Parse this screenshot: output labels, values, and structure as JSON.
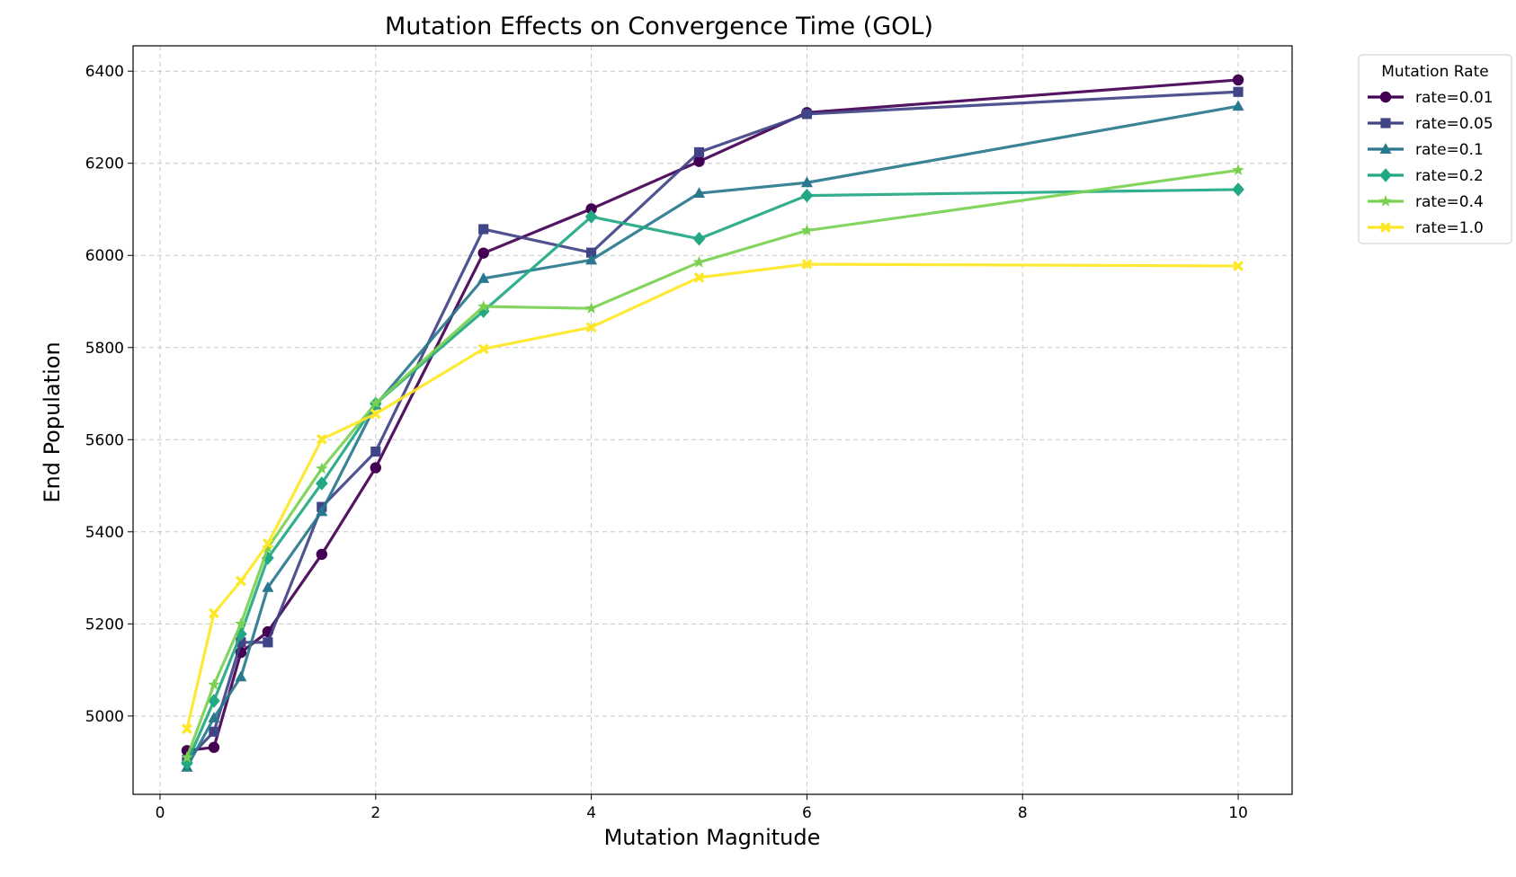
{
  "chart_data": {
    "type": "line",
    "title": "Mutation Effects on Convergence Time (GOL)",
    "xlabel": "Mutation Magnitude",
    "ylabel": "End Population",
    "xlim": [
      -0.25,
      10.5
    ],
    "ylim": [
      4830,
      6455
    ],
    "xticks": [
      0,
      2,
      4,
      6,
      8,
      10
    ],
    "yticks": [
      5000,
      5200,
      5400,
      5600,
      5800,
      6000,
      6200,
      6400
    ],
    "grid": true,
    "legend": {
      "title": "Mutation Rate",
      "placement": "outside-top-right"
    },
    "x": [
      0.25,
      0.5,
      0.75,
      1.0,
      1.5,
      2.0,
      3.0,
      4.0,
      5.0,
      6.0,
      10.0
    ],
    "series": [
      {
        "name": "rate=0.01",
        "color": "#440154",
        "marker": "circle",
        "values": [
          4925,
          4932,
          5138,
          5183,
          5351,
          5539,
          6005,
          6101,
          6204,
          6310,
          6381
        ]
      },
      {
        "name": "rate=0.05",
        "color": "#414487",
        "marker": "square",
        "values": [
          4905,
          4966,
          5160,
          5160,
          5454,
          5574,
          6057,
          6006,
          6224,
          6307,
          6355
        ]
      },
      {
        "name": "rate=0.1",
        "color": "#2a788e",
        "marker": "triangle",
        "values": [
          4889,
          4996,
          5085,
          5279,
          5444,
          5675,
          5950,
          5990,
          6135,
          6158,
          6324
        ]
      },
      {
        "name": "rate=0.2",
        "color": "#22a884",
        "marker": "diamond",
        "values": [
          4898,
          5033,
          5178,
          5343,
          5505,
          5678,
          5879,
          6084,
          6036,
          6130,
          6143
        ]
      },
      {
        "name": "rate=0.4",
        "color": "#7ad151",
        "marker": "star",
        "values": [
          4910,
          5068,
          5200,
          5365,
          5537,
          5679,
          5889,
          5885,
          5985,
          6054,
          6185
        ]
      },
      {
        "name": "rate=1.0",
        "color": "#fde725",
        "marker": "x",
        "values": [
          4972,
          5223,
          5293,
          5374,
          5601,
          5656,
          5797,
          5844,
          5952,
          5981,
          5977
        ]
      }
    ]
  }
}
